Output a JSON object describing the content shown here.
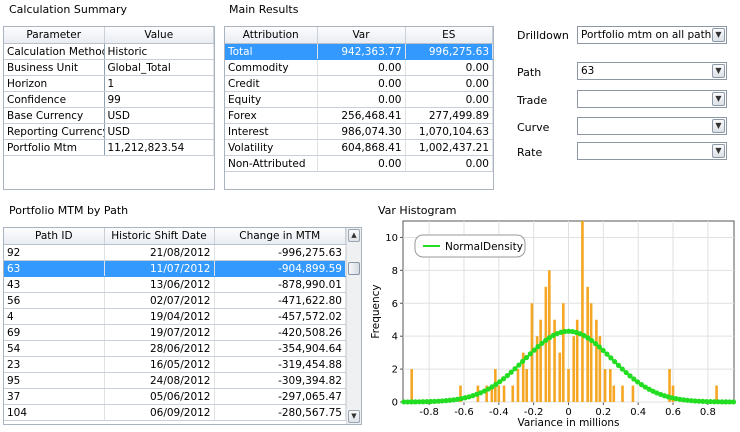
{
  "calc_summary": {
    "title": "Calculation Summary",
    "headers": [
      "Parameter",
      "Value"
    ],
    "rows": [
      [
        "Calculation Method",
        "Historic"
      ],
      [
        "Business Unit",
        "Global_Total"
      ],
      [
        "Horizon",
        "1"
      ],
      [
        "Confidence",
        "99"
      ],
      [
        "Base Currency",
        "USD"
      ],
      [
        "Reporting Currency",
        "USD"
      ],
      [
        "Portfolio Mtm",
        "11,212,823.54"
      ]
    ]
  },
  "main_results": {
    "title": "Main Results",
    "headers": [
      "Attribution",
      "Var",
      "ES"
    ],
    "rows": [
      [
        "Total",
        "942,363.77",
        "996,275.63"
      ],
      [
        "Commodity",
        "0.00",
        "0.00"
      ],
      [
        "Credit",
        "0.00",
        "0.00"
      ],
      [
        "Equity",
        "0.00",
        "0.00"
      ],
      [
        "Forex",
        "256,468.41",
        "277,499.89"
      ],
      [
        "Interest",
        "986,074.30",
        "1,070,104.63"
      ],
      [
        "Volatility",
        "604,868.41",
        "1,002,437.21"
      ],
      [
        "Non-Attributed",
        "0.00",
        "0.00"
      ]
    ],
    "selected_row": 0
  },
  "filters": {
    "drilldown_label": "Drilldown",
    "drilldown_value": "Portfolio mtm on all paths",
    "path_label": "Path",
    "path_value": "63",
    "trade_label": "Trade",
    "trade_value": "",
    "curve_label": "Curve",
    "curve_value": "",
    "rate_label": "Rate",
    "rate_value": ""
  },
  "mtm_by_path": {
    "title": "Portfolio MTM by Path",
    "headers": [
      "Path ID",
      "Historic Shift Date",
      "Change in MTM"
    ],
    "rows": [
      [
        "92",
        "21/08/2012",
        "-996,275.63"
      ],
      [
        "63",
        "11/07/2012",
        "-904,899.59"
      ],
      [
        "43",
        "13/06/2012",
        "-878,990.01"
      ],
      [
        "56",
        "02/07/2012",
        "-471,622.80"
      ],
      [
        "4",
        "19/04/2012",
        "-457,572.02"
      ],
      [
        "69",
        "19/07/2012",
        "-420,508.26"
      ],
      [
        "54",
        "28/06/2012",
        "-354,904.64"
      ],
      [
        "23",
        "16/05/2012",
        "-319,454.88"
      ],
      [
        "95",
        "24/08/2012",
        "-309,394.82"
      ],
      [
        "37",
        "05/06/2012",
        "-297,065.47"
      ],
      [
        "104",
        "06/09/2012",
        "-280,567.75"
      ]
    ],
    "selected_row": 1
  },
  "histogram": {
    "title": "Var Histogram",
    "icons": [
      "chevron-up-icon",
      "chevron-down-icon"
    ]
  },
  "colors": {
    "selection": "#3399ff",
    "bars": "#f5a623",
    "density": "#22dd22",
    "border": "#aab4c0"
  },
  "chart_data": {
    "type": "bar",
    "title": "",
    "xlabel": "Variance in millions",
    "ylabel": "Frequency",
    "xlim": [
      -0.95,
      0.95
    ],
    "ylim": [
      0,
      11
    ],
    "xticks": [
      "-0.8",
      "-0.6",
      "-0.4",
      "-0.2",
      "0",
      "0.2",
      "0.4",
      "0.6",
      "0.8"
    ],
    "yticks": [
      "0",
      "2",
      "4",
      "6",
      "8",
      "10"
    ],
    "grid": true,
    "legend": {
      "position": "top-left",
      "entries": [
        "NormalDensity"
      ]
    },
    "series": [
      {
        "type": "bar",
        "x": [
          -0.9,
          -0.62,
          -0.52,
          -0.47,
          -0.44,
          -0.42,
          -0.4,
          -0.37,
          -0.32,
          -0.29,
          -0.26,
          -0.24,
          -0.21,
          -0.18,
          -0.16,
          -0.13,
          -0.11,
          -0.08,
          -0.05,
          -0.03,
          0.0,
          0.03,
          0.05,
          0.08,
          0.11,
          0.13,
          0.16,
          0.18,
          0.21,
          0.24,
          0.26,
          0.31,
          0.37,
          0.58,
          0.6,
          0.85
        ],
        "values": [
          2,
          1,
          1,
          1,
          1,
          2,
          1,
          1,
          1,
          2,
          3,
          2,
          6,
          4,
          5,
          7,
          8,
          5,
          3,
          6,
          2,
          4,
          5,
          11,
          7,
          6,
          5,
          4,
          2,
          2,
          1,
          1,
          1,
          2,
          1,
          1
        ]
      },
      {
        "name": "NormalDensity",
        "type": "line",
        "mean": 0.0,
        "sd": 0.25,
        "peak": 4.3
      }
    ]
  }
}
